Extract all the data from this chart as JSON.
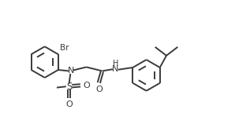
{
  "bg_color": "#ffffff",
  "line_color": "#3a3a3a",
  "bond_lw": 1.4,
  "xlim": [
    0,
    10.5
  ],
  "ylim": [
    0,
    6.2
  ],
  "figsize": [
    3.17,
    1.72
  ],
  "dpi": 100
}
